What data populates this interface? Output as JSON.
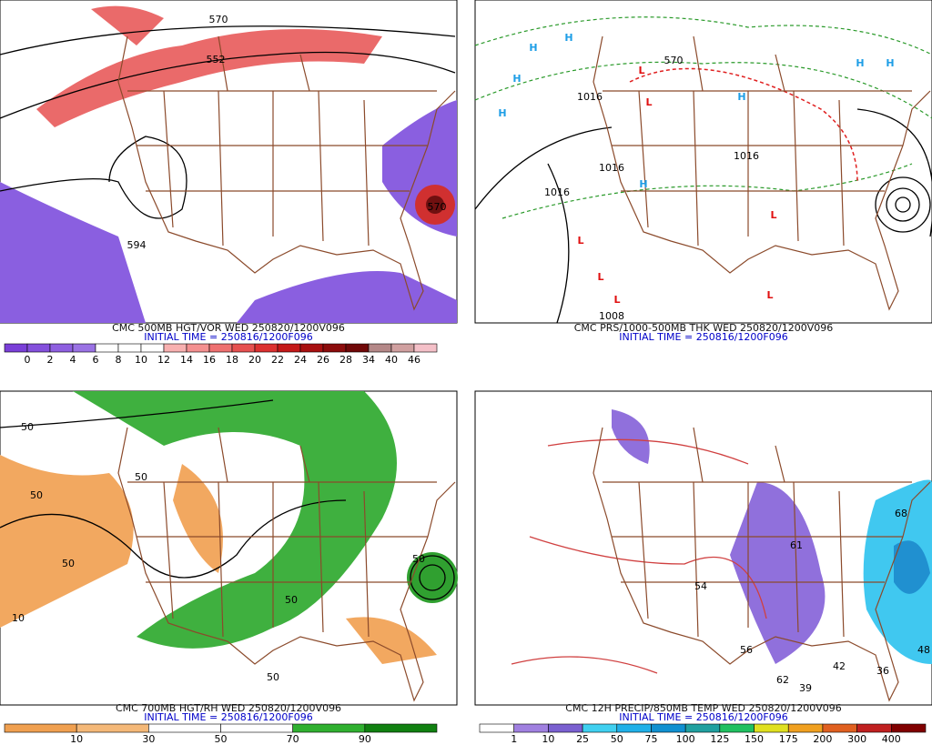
{
  "panels": [
    {
      "caption": "CMC 500MB HGT/VOR WED 250820/1200V096",
      "initial_time": "INITIAL TIME = 250816/1200F096",
      "map_labels": [
        "570",
        "552",
        "594",
        "570"
      ],
      "colorbar": {
        "labels": [
          0,
          2,
          4,
          6,
          8,
          10,
          12,
          14,
          16,
          18,
          20,
          22,
          24,
          26,
          28,
          34,
          40,
          46
        ],
        "colors": [
          "#7a3fd8",
          "#8450dc",
          "#8e5fe0",
          "#9a72e4",
          "#ffffff",
          "#ffffff",
          "#ffffff",
          "#f8b0b0",
          "#f49090",
          "#ee7070",
          "#e65050",
          "#dc3030",
          "#c41818",
          "#a81010",
          "#8c0c0c",
          "#700808",
          "#b48888",
          "#d0a0a0",
          "#f4c0c8"
        ]
      }
    },
    {
      "caption": "CMC PRS/1000-500MB THK WED 250820/1200V096",
      "initial_time": "INITIAL TIME = 250816/1200F096",
      "map_labels": [
        "H",
        "H",
        "H",
        "H",
        "H",
        "H",
        "H",
        "H",
        "L",
        "L",
        "L",
        "L",
        "L",
        "L",
        "L",
        "570",
        "1016",
        "1016",
        "1016",
        "1016",
        "1008"
      ]
    },
    {
      "caption": "CMC 700MB HGT/RH WED 250820/1200V096",
      "initial_time": "INITIAL TIME = 250816/1200F096",
      "map_labels": [
        "50",
        "50",
        "50",
        "50",
        "50",
        "50",
        "50",
        "10"
      ],
      "colorbar": {
        "labels": [
          10,
          30,
          50,
          70,
          90
        ],
        "colors": [
          "#f0a050",
          "#f4b878",
          "#ffffff",
          "#ffffff",
          "#30b030",
          "#108010"
        ]
      }
    },
    {
      "caption": "CMC 12H PRECIP/850MB TEMP WED 250820/1200V096",
      "initial_time": "INITIAL TIME = 250816/1200F096",
      "map_labels": [
        "54",
        "56",
        "62",
        "39",
        "42",
        "61",
        "68",
        "36",
        "48"
      ],
      "colorbar": {
        "labels": [
          1,
          10,
          25,
          50,
          75,
          100,
          125,
          150,
          175,
          200,
          300,
          400
        ],
        "colors": [
          "#ffffff",
          "#a080e0",
          "#7a60d0",
          "#40d0f0",
          "#20b0e8",
          "#1090d0",
          "#20a0a0",
          "#20c060",
          "#e0e020",
          "#f0a020",
          "#e06020",
          "#c02020",
          "#800000"
        ]
      }
    }
  ]
}
